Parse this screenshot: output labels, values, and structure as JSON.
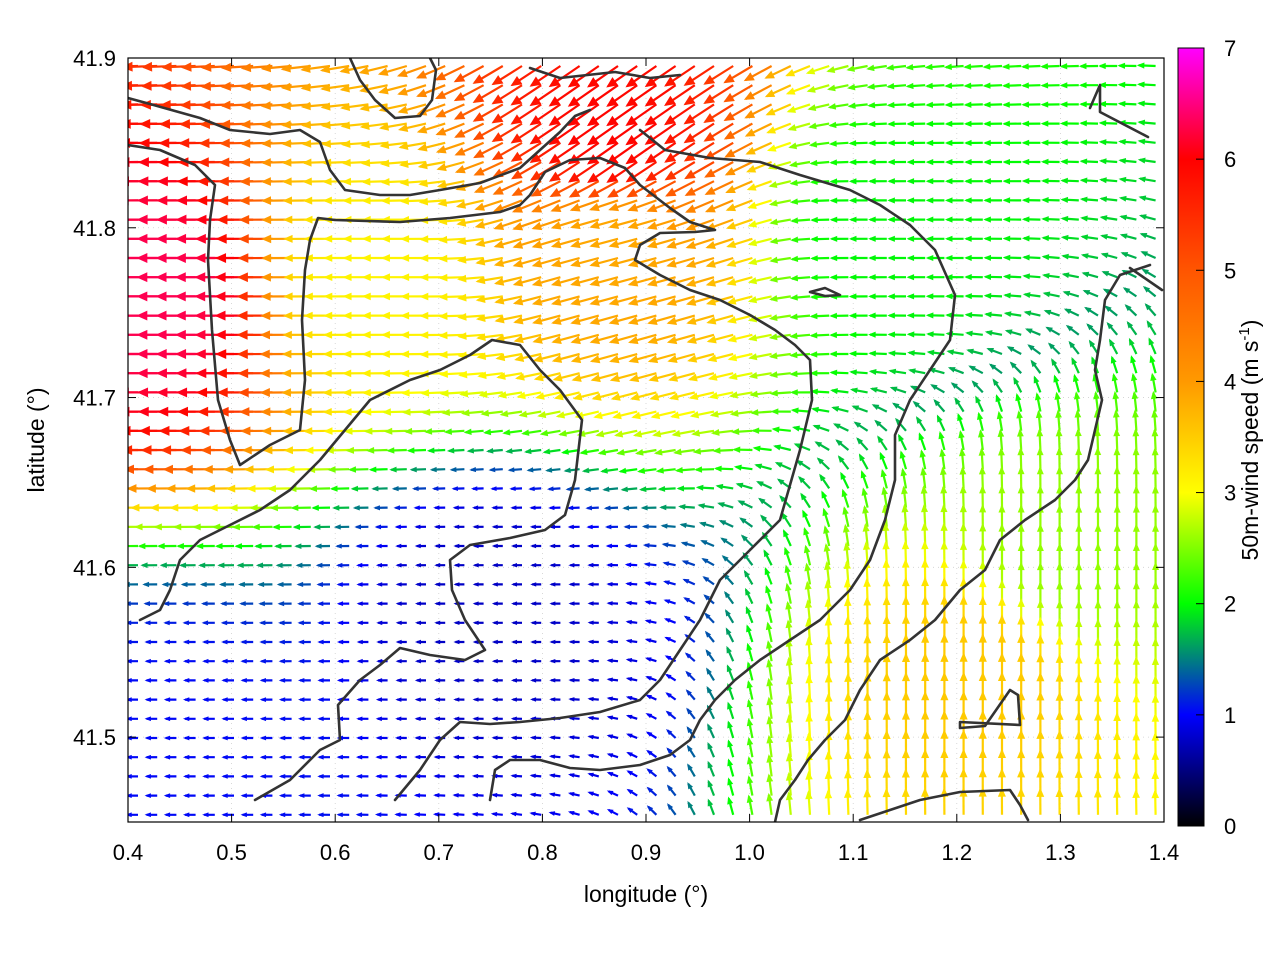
{
  "chart_data": {
    "type": "vector-field",
    "title": "",
    "xlabel": "longitude (°)",
    "ylabel": "latitude (°)",
    "xlim": [
      0.4,
      1.4
    ],
    "ylim": [
      41.45,
      41.9
    ],
    "xticks": [
      "0.4",
      "0.5",
      "0.6",
      "0.7",
      "0.8",
      "0.9",
      "1.0",
      "1.1",
      "1.2",
      "1.3",
      "1.4"
    ],
    "yticks": [
      "41.5",
      "41.6",
      "41.7",
      "41.8",
      "41.9"
    ],
    "colorbar": {
      "label_main": "50m-wind speed (m s",
      "label_sup": "-1",
      "label_close": ")",
      "range": [
        0,
        7
      ],
      "ticks": [
        "0",
        "1",
        "2",
        "3",
        "4",
        "5",
        "6",
        "7"
      ],
      "palette": [
        "#000000",
        "#0000ff",
        "#00ff00",
        "#ffff00",
        "#ff8000",
        "#ff0000",
        "#ff00ff"
      ]
    },
    "wind_regions": [
      {
        "lon": 0.45,
        "lat": 41.76,
        "speed": 6.2,
        "direction": "westward"
      },
      {
        "lon": 0.65,
        "lat": 41.77,
        "speed": 3.6,
        "direction": "westward"
      },
      {
        "lon": 0.88,
        "lat": 41.86,
        "speed": 5.8,
        "direction": "south-westward"
      },
      {
        "lon": 0.88,
        "lat": 41.79,
        "speed": 4.3,
        "direction": "west-south-westward"
      },
      {
        "lon": 1.15,
        "lat": 41.8,
        "speed": 2.3,
        "direction": "westward"
      },
      {
        "lon": 0.75,
        "lat": 41.58,
        "speed": 0.9,
        "direction": "westward"
      },
      {
        "lon": 1.22,
        "lat": 41.53,
        "speed": 4.0,
        "direction": "northward"
      },
      {
        "lon": 1.3,
        "lat": 41.6,
        "speed": 3.0,
        "direction": "northward"
      },
      {
        "lon": 0.45,
        "lat": 41.5,
        "speed": 1.2,
        "direction": "westward"
      }
    ]
  }
}
